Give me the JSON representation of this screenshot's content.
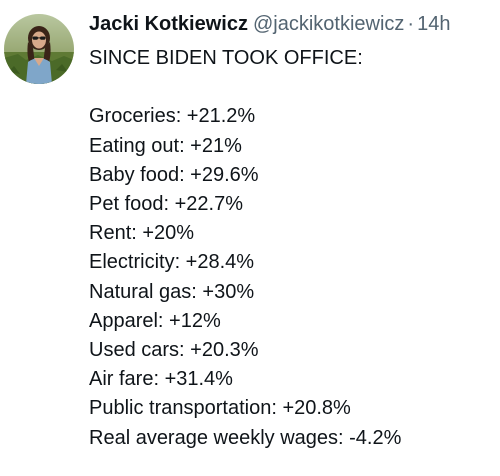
{
  "author": {
    "display_name": "Jacki Kotkiewicz",
    "handle": "@jackikotkiewicz",
    "separator": "·",
    "timestamp": "14h",
    "avatar_icon": "user-avatar-photo"
  },
  "tweet": {
    "headline": "SINCE BIDEN TOOK OFFICE:",
    "items": [
      "Groceries: +21.2%",
      "Eating out: +21%",
      "Baby food: +29.6%",
      "Pet food: +22.7%",
      "Rent: +20%",
      "Electricity: +28.4%",
      "Natural gas: +30%",
      "Apparel: +12%",
      "Used cars: +20.3%",
      "Air fare: +31.4%",
      "Public transportation: +20.8%",
      "Real average weekly wages: -4.2%"
    ]
  },
  "colors": {
    "text_primary": "#0f1419",
    "text_secondary": "#536471",
    "background": "#ffffff"
  }
}
